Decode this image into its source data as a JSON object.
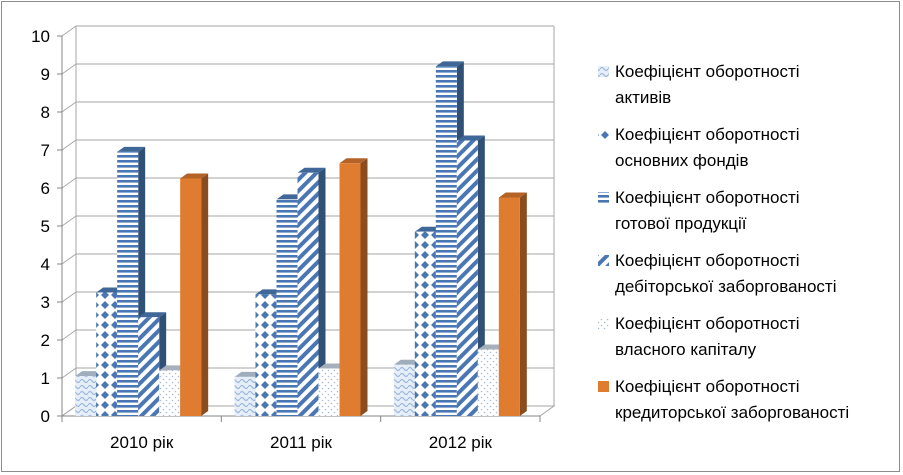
{
  "chart_data": {
    "type": "bar",
    "categories": [
      "2010 рік",
      "2011 рік",
      "2012 рік"
    ],
    "ylim": [
      0,
      10
    ],
    "yticks": [
      0,
      1,
      2,
      3,
      4,
      5,
      6,
      7,
      8,
      9,
      10
    ],
    "grid": true,
    "legend_position": "right",
    "series": [
      {
        "name": [
          "Коефіцієнт оборотності",
          "активів"
        ],
        "values": [
          1.05,
          1.03,
          1.35
        ],
        "color": "#c8d8ec",
        "pattern": "wave"
      },
      {
        "name": [
          "Коефіцієнт оборотності",
          "основних фондів"
        ],
        "values": [
          3.25,
          3.2,
          4.85
        ],
        "color": "#4f81bd",
        "pattern": "diamond"
      },
      {
        "name": [
          "Коефіцієнт оборотності",
          "готової продукції"
        ],
        "values": [
          6.95,
          5.7,
          9.2
        ],
        "color": "#4f81bd",
        "pattern": "hstripe"
      },
      {
        "name": [
          "Коефіцієнт оборотності",
          "дебіторської заборгованості"
        ],
        "values": [
          2.6,
          6.4,
          7.25
        ],
        "color": "#4f81bd",
        "pattern": "diag"
      },
      {
        "name": [
          "Коефіцієнт оборотності",
          "власного капіталу"
        ],
        "values": [
          1.2,
          1.25,
          1.75
        ],
        "color": "#d0dcec",
        "pattern": "dots"
      },
      {
        "name": [
          "Коефіцієнт оборотності",
          "кредиторської заборгованості"
        ],
        "values": [
          6.25,
          6.65,
          5.75
        ],
        "color": "#e07c30",
        "pattern": "solid"
      }
    ]
  }
}
